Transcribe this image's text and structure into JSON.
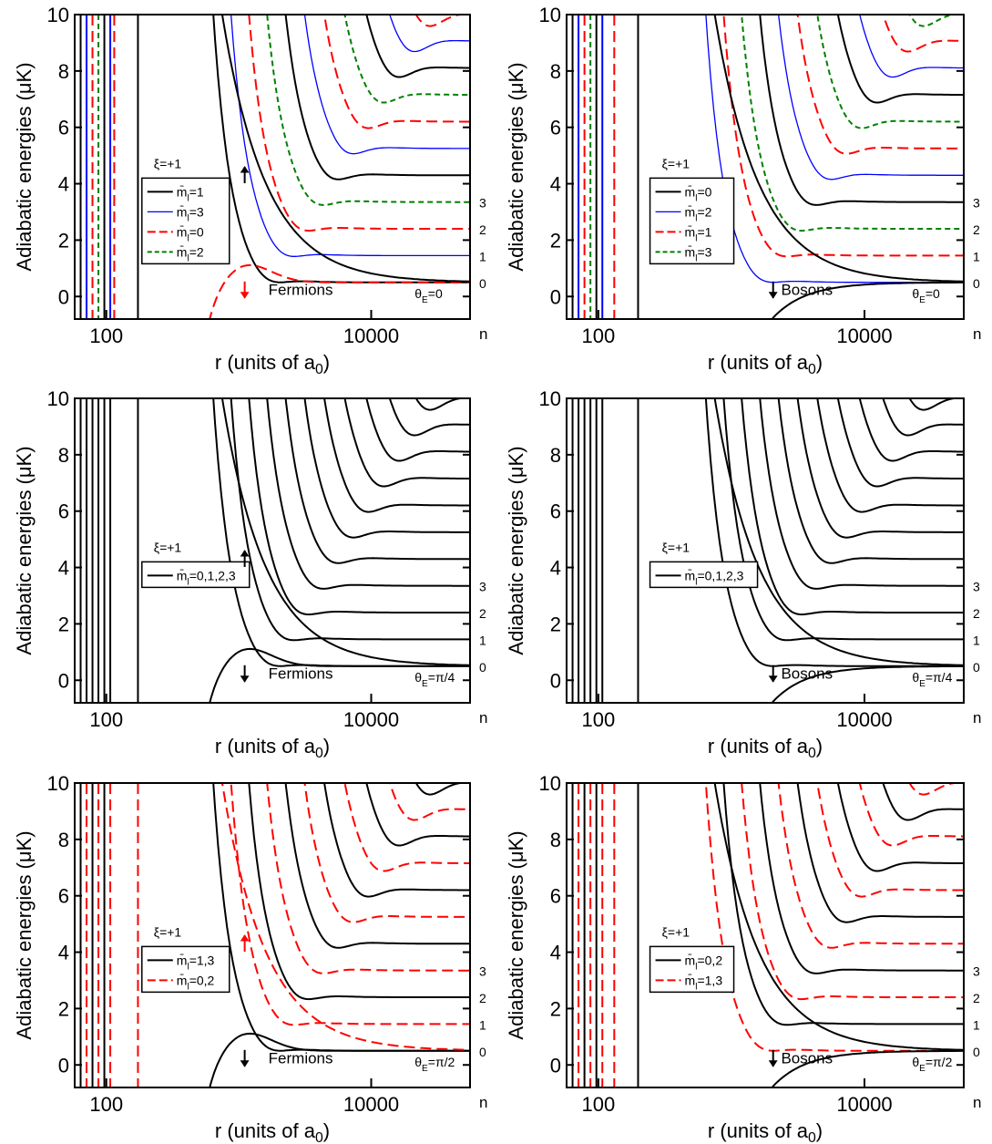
{
  "colors": {
    "black": "#000000",
    "blue": "#0000ff",
    "red": "#ff0000",
    "green": "#008000"
  },
  "chart_data": [
    {
      "type": "line",
      "id": "p1",
      "ylabel": "Adiabatic energies (μK)",
      "xlabel": "r (units of a0)",
      "xscale": "log",
      "ylim": [
        -0.8,
        10
      ],
      "yticks": [
        "0",
        "2",
        "4",
        "6",
        "8",
        "10"
      ],
      "xticks": [
        "100",
        "10000"
      ],
      "n_labels": [
        "3",
        "2",
        "1",
        "0"
      ],
      "n_axis_label": "n",
      "xi_label": "ξ=+1",
      "system": "Fermions",
      "theta": "θE=0",
      "legend": [
        {
          "label": "m̄l=1",
          "color": "#000000",
          "style": "solid"
        },
        {
          "label": "m̄l=3",
          "color": "#0000ff",
          "style": "solid"
        },
        {
          "label": "m̄l=0",
          "color": "#ff0000",
          "style": "dashed"
        },
        {
          "label": "m̄l=2",
          "color": "#008000",
          "style": "dashed"
        }
      ],
      "arrows": [
        {
          "direction": "up",
          "color": "#000000"
        },
        {
          "direction": "down",
          "color": "#ff0000"
        }
      ]
    },
    {
      "type": "line",
      "id": "p2",
      "ylabel": "Adiabatic energies (μK)",
      "xlabel": "r (units of a0)",
      "xscale": "log",
      "ylim": [
        -0.8,
        10
      ],
      "yticks": [
        "0",
        "2",
        "4",
        "6",
        "8",
        "10"
      ],
      "xticks": [
        "100",
        "10000"
      ],
      "n_labels": [
        "3",
        "2",
        "1",
        "0"
      ],
      "n_axis_label": "n",
      "xi_label": "ξ=+1",
      "system": "Bosons",
      "theta": "θE=0",
      "legend": [
        {
          "label": "m̄l=0",
          "color": "#000000",
          "style": "solid"
        },
        {
          "label": "m̄l=2",
          "color": "#0000ff",
          "style": "solid"
        },
        {
          "label": "m̄l=1",
          "color": "#ff0000",
          "style": "dashed"
        },
        {
          "label": "m̄l=3",
          "color": "#008000",
          "style": "dashed"
        }
      ],
      "arrows": [
        {
          "direction": "down",
          "color": "#000000"
        }
      ]
    },
    {
      "type": "line",
      "id": "p3",
      "ylabel": "Adiabatic energies (μK)",
      "xlabel": "r (units of a0)",
      "xscale": "log",
      "ylim": [
        -0.8,
        10
      ],
      "yticks": [
        "0",
        "2",
        "4",
        "6",
        "8",
        "10"
      ],
      "xticks": [
        "100",
        "10000"
      ],
      "n_labels": [
        "3",
        "2",
        "1",
        "0"
      ],
      "n_axis_label": "n",
      "xi_label": "ξ=+1",
      "system": "Fermions",
      "theta": "θE=π/4",
      "legend": [
        {
          "label": "m̄l=0,1,2,3",
          "color": "#000000",
          "style": "solid"
        }
      ],
      "arrows": [
        {
          "direction": "up",
          "color": "#000000"
        },
        {
          "direction": "down",
          "color": "#000000"
        }
      ]
    },
    {
      "type": "line",
      "id": "p4",
      "ylabel": "Adiabatic energies (μK)",
      "xlabel": "r (units of a0)",
      "xscale": "log",
      "ylim": [
        -0.8,
        10
      ],
      "yticks": [
        "0",
        "2",
        "4",
        "6",
        "8",
        "10"
      ],
      "xticks": [
        "100",
        "10000"
      ],
      "n_labels": [
        "3",
        "2",
        "1",
        "0"
      ],
      "n_axis_label": "n",
      "xi_label": "ξ=+1",
      "system": "Bosons",
      "theta": "θE=π/4",
      "legend": [
        {
          "label": "m̄l=0,1,2,3",
          "color": "#000000",
          "style": "solid"
        }
      ],
      "arrows": [
        {
          "direction": "down",
          "color": "#000000"
        }
      ]
    },
    {
      "type": "line",
      "id": "p5",
      "ylabel": "Adiabatic energies (μK)",
      "xlabel": "r (units of a0)",
      "xscale": "log",
      "ylim": [
        -0.8,
        10
      ],
      "yticks": [
        "0",
        "2",
        "4",
        "6",
        "8",
        "10"
      ],
      "xticks": [
        "100",
        "10000"
      ],
      "n_labels": [
        "3",
        "2",
        "1",
        "0"
      ],
      "n_axis_label": "n",
      "xi_label": "ξ=+1",
      "system": "Fermions",
      "theta": "θE=π/2",
      "legend": [
        {
          "label": "m̄l=1,3",
          "color": "#000000",
          "style": "solid"
        },
        {
          "label": "m̄l=0,2",
          "color": "#ff0000",
          "style": "dashed"
        }
      ],
      "arrows": [
        {
          "direction": "up",
          "color": "#ff0000"
        },
        {
          "direction": "down",
          "color": "#000000"
        }
      ]
    },
    {
      "type": "line",
      "id": "p6",
      "ylabel": "Adiabatic energies (μK)",
      "xlabel": "r (units of a0)",
      "xscale": "log",
      "ylim": [
        -0.8,
        10
      ],
      "yticks": [
        "0",
        "2",
        "4",
        "6",
        "8",
        "10"
      ],
      "xticks": [
        "100",
        "10000"
      ],
      "n_labels": [
        "3",
        "2",
        "1",
        "0"
      ],
      "n_axis_label": "n",
      "xi_label": "ξ=+1",
      "system": "Bosons",
      "theta": "θE=π/2",
      "legend": [
        {
          "label": "m̄l=0,2",
          "color": "#000000",
          "style": "solid"
        },
        {
          "label": "m̄l=1,3",
          "color": "#ff0000",
          "style": "dashed"
        }
      ],
      "arrows": [
        {
          "direction": "down",
          "color": "#000000"
        }
      ]
    }
  ]
}
